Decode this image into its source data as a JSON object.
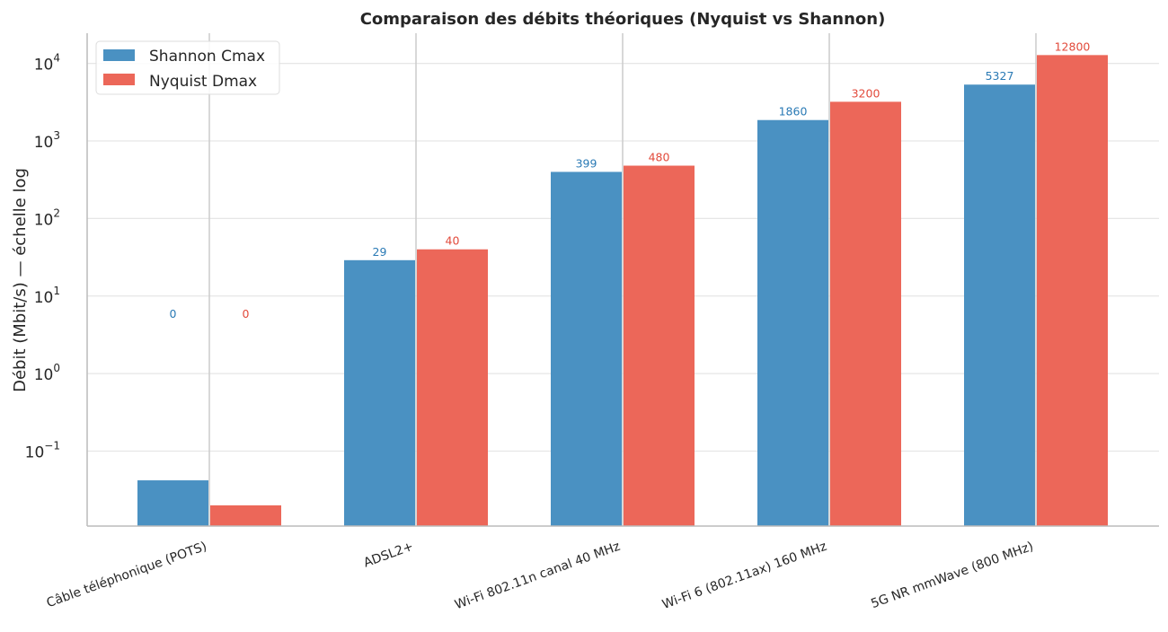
{
  "chart_data": {
    "type": "bar",
    "title": "Comparaison des débits théoriques (Nyquist vs Shannon)",
    "xlabel": "",
    "ylabel": "Débit (Mbit/s) — échelle log",
    "yscale": "log",
    "ylim": [
      0.0108,
      24500
    ],
    "yticks": [
      {
        "value": 0.1,
        "base": "10",
        "exp": "−1"
      },
      {
        "value": 1,
        "base": "10",
        "exp": "0"
      },
      {
        "value": 10,
        "base": "10",
        "exp": "1"
      },
      {
        "value": 100,
        "base": "10",
        "exp": "2"
      },
      {
        "value": 1000,
        "base": "10",
        "exp": "3"
      },
      {
        "value": 10000,
        "base": "10",
        "exp": "4"
      }
    ],
    "grid": true,
    "legend_position": "top-left",
    "categories": [
      "Câble téléphonique (POTS)",
      "ADSL2+",
      "Wi-Fi 802.11n canal 40 MHz",
      "Wi-Fi 6 (802.11ax) 160 MHz",
      "5G NR mmWave (800 MHz)"
    ],
    "series": [
      {
        "name": "Shannon Cmax",
        "color": "#4a91c2",
        "label_color": "#2a7ab5",
        "values": [
          0.042,
          29,
          399,
          1860,
          5327
        ],
        "labels": [
          "0",
          "29",
          "399",
          "1860",
          "5327"
        ]
      },
      {
        "name": "Nyquist Dmax",
        "color": "#ec6759",
        "label_color": "#e24a3b",
        "values": [
          0.02,
          40,
          480,
          3200,
          12800
        ],
        "labels": [
          "0",
          "40",
          "480",
          "3200",
          "12800"
        ]
      }
    ]
  }
}
